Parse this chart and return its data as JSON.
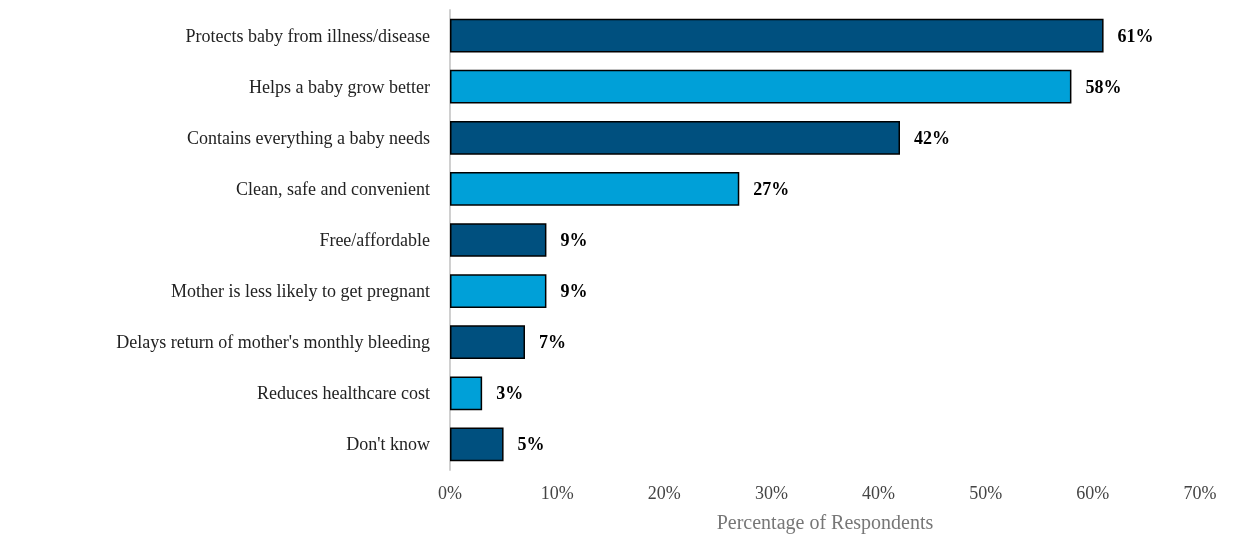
{
  "chart_data": {
    "type": "bar",
    "orientation": "horizontal",
    "xlabel": "Percentage of Respondents",
    "categories": [
      "Protects baby from illness/disease",
      "Helps a baby grow better",
      "Contains everything a baby needs",
      "Clean, safe and convenient",
      "Free/affordable",
      "Mother is less likely to get pregnant",
      "Delays return of mother's monthly bleeding",
      "Reduces healthcare cost",
      "Don't know"
    ],
    "values": [
      61,
      58,
      42,
      27,
      9,
      9,
      7,
      3,
      5
    ],
    "colors": [
      "#00507f",
      "#00a0d8",
      "#00507f",
      "#00a0d8",
      "#00507f",
      "#00a0d8",
      "#00507f",
      "#00a0d8",
      "#00507f"
    ],
    "value_labels": [
      "61%",
      "58%",
      "42%",
      "27%",
      "9%",
      "9%",
      "7%",
      "3%",
      "5%"
    ],
    "xlim": [
      0,
      70
    ],
    "xticks": [
      {
        "value": 0,
        "label": "0%"
      },
      {
        "value": 10,
        "label": "10%"
      },
      {
        "value": 20,
        "label": "20%"
      },
      {
        "value": 30,
        "label": "30%"
      },
      {
        "value": 40,
        "label": "40%"
      },
      {
        "value": 50,
        "label": "50%"
      },
      {
        "value": 60,
        "label": "60%"
      },
      {
        "value": 70,
        "label": "70%"
      }
    ],
    "grid": false
  }
}
